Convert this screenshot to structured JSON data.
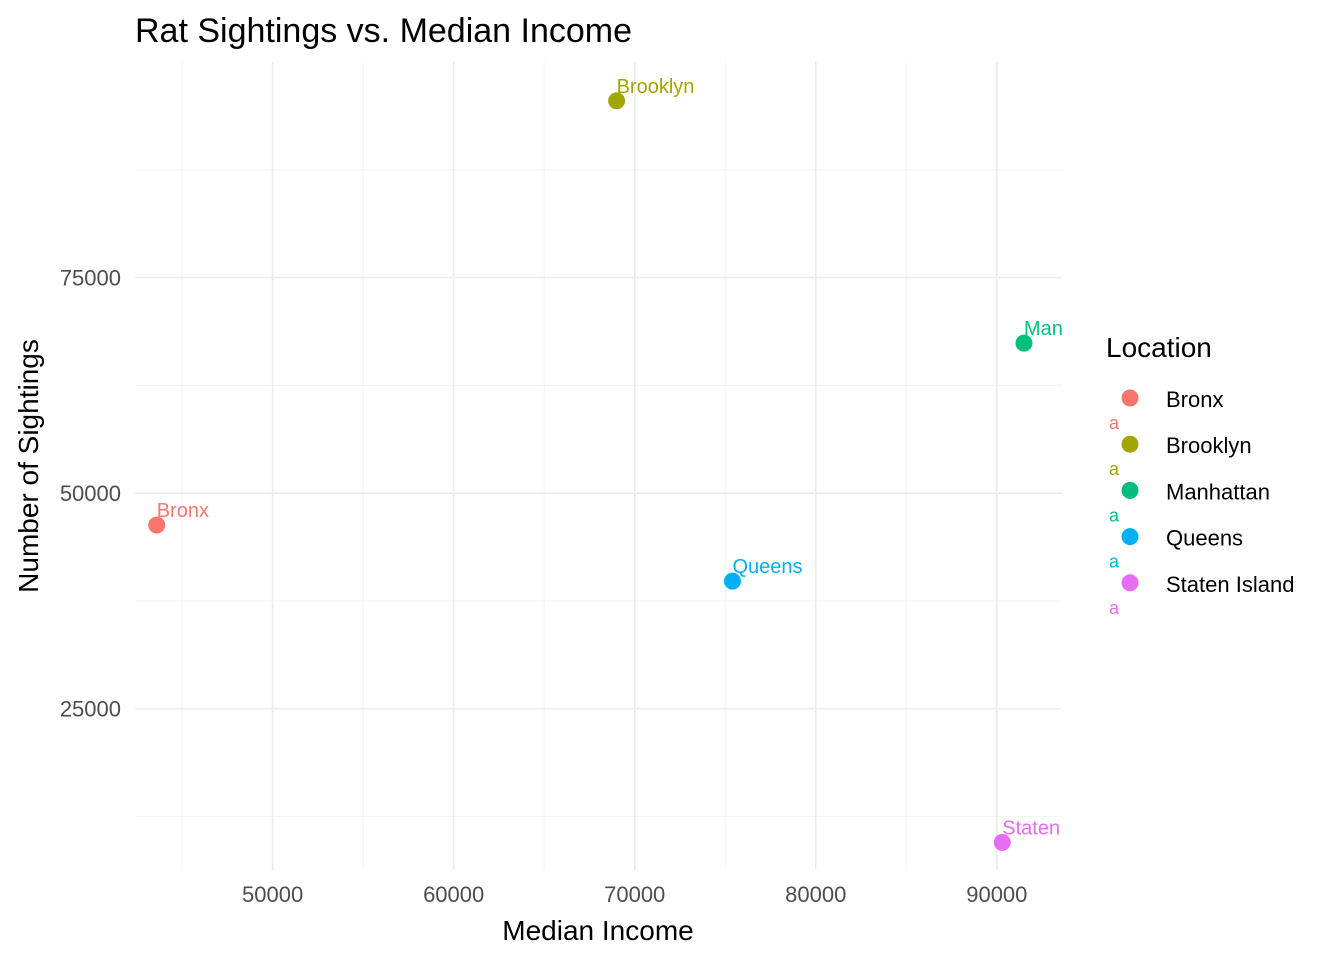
{
  "chart_data": {
    "type": "scatter",
    "title": "Rat Sightings vs. Median Income",
    "xlabel": "Median Income",
    "ylabel": "Number of Sightings",
    "xlim": [
      42400,
      93600
    ],
    "ylim": [
      6300,
      100000
    ],
    "x_ticks": [
      50000,
      60000,
      70000,
      80000,
      90000
    ],
    "x_tick_labels": [
      "50000",
      "60000",
      "70000",
      "80000",
      "90000"
    ],
    "x_minor_ticks": [
      45000,
      55000,
      65000,
      75000,
      85000
    ],
    "y_ticks": [
      25000,
      50000,
      75000
    ],
    "y_tick_labels": [
      "25000",
      "50000",
      "75000"
    ],
    "y_minor_ticks": [
      12500,
      37500,
      62500,
      87500
    ],
    "grid": true,
    "legend": {
      "title": "Location",
      "placement": "right",
      "key_text": "a",
      "entries": [
        {
          "name": "Bronx",
          "color": "#F8766D"
        },
        {
          "name": "Brooklyn",
          "color": "#A3A500"
        },
        {
          "name": "Manhattan",
          "color": "#00BF7D"
        },
        {
          "name": "Queens",
          "color": "#00B0F6"
        },
        {
          "name": "Staten Island",
          "color": "#E76BF3"
        }
      ]
    },
    "points": [
      {
        "location": "Bronx",
        "x": 43600,
        "y": 46300,
        "label": "Bronx",
        "color": "#F8766D"
      },
      {
        "location": "Brooklyn",
        "x": 69000,
        "y": 95500,
        "label": "Brooklyn",
        "color": "#A3A500"
      },
      {
        "location": "Manhattan",
        "x": 91500,
        "y": 67400,
        "label": "Man",
        "color": "#00BF7D"
      },
      {
        "location": "Queens",
        "x": 75400,
        "y": 39800,
        "label": "Queens",
        "color": "#00B0F6"
      },
      {
        "location": "Staten Island",
        "x": 90300,
        "y": 9500,
        "label": "Staten",
        "color": "#E76BF3"
      }
    ]
  }
}
